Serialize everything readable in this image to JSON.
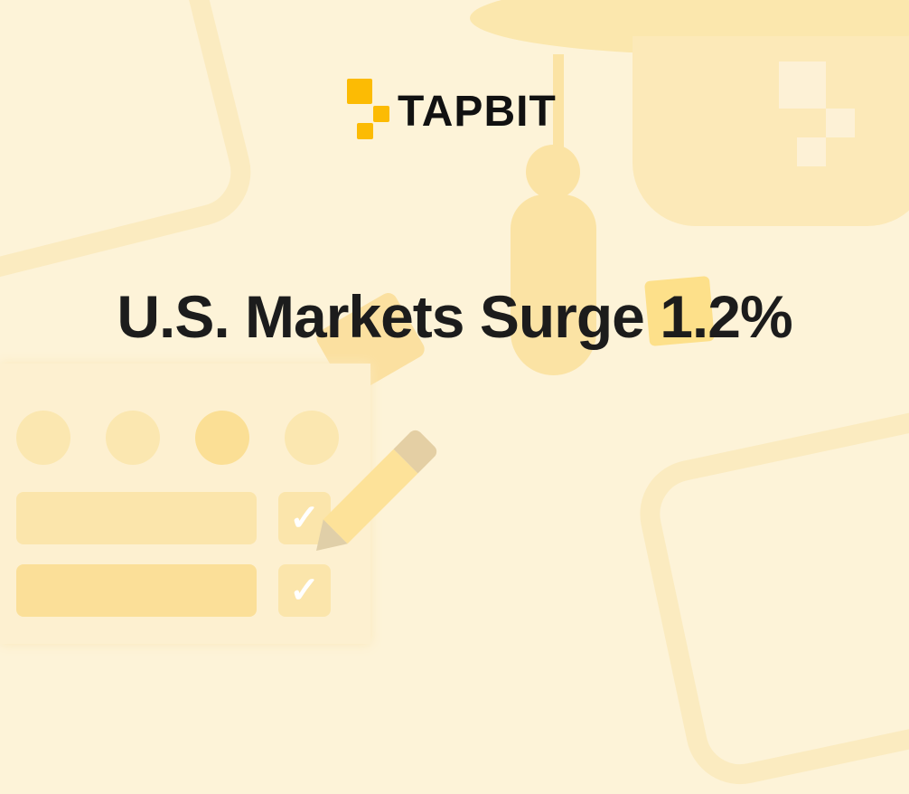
{
  "brand": {
    "name": "TAPBIT",
    "color": "#fcbb04"
  },
  "headline": {
    "text": "U.S. Markets Surge ",
    "highlight": "1.2%"
  },
  "decor": {
    "check_icon": "✓"
  }
}
